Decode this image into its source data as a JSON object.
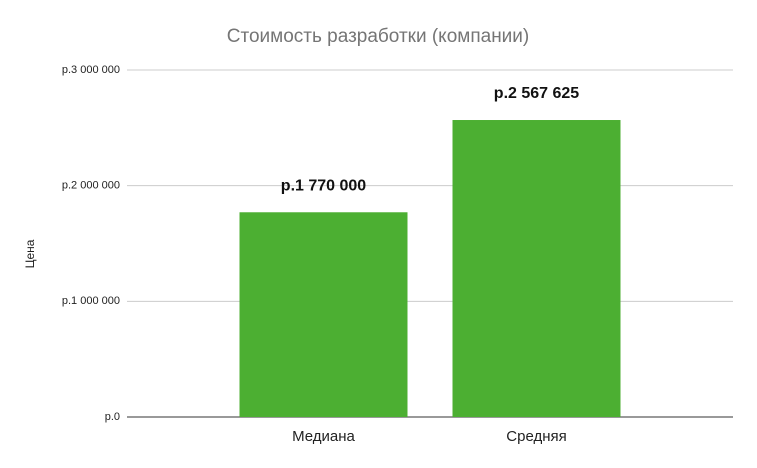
{
  "chart_data": {
    "type": "bar",
    "title": "Стоимость разработки (компании)",
    "y_label": "Цена",
    "categories": [
      "Медиана",
      "Средняя"
    ],
    "values": [
      1770000,
      2567625
    ],
    "value_labels": [
      "р.1 770 000",
      "р.2 567 625"
    ],
    "color": "#4caf32",
    "ylim": [
      0,
      3000000
    ],
    "yticks": [
      {
        "value": 0,
        "label": "р.0"
      },
      {
        "value": 1000000,
        "label": "р.1 000 000"
      },
      {
        "value": 2000000,
        "label": "р.2 000 000"
      },
      {
        "value": 3000000,
        "label": "р.3 000 000"
      }
    ],
    "grid": true
  }
}
